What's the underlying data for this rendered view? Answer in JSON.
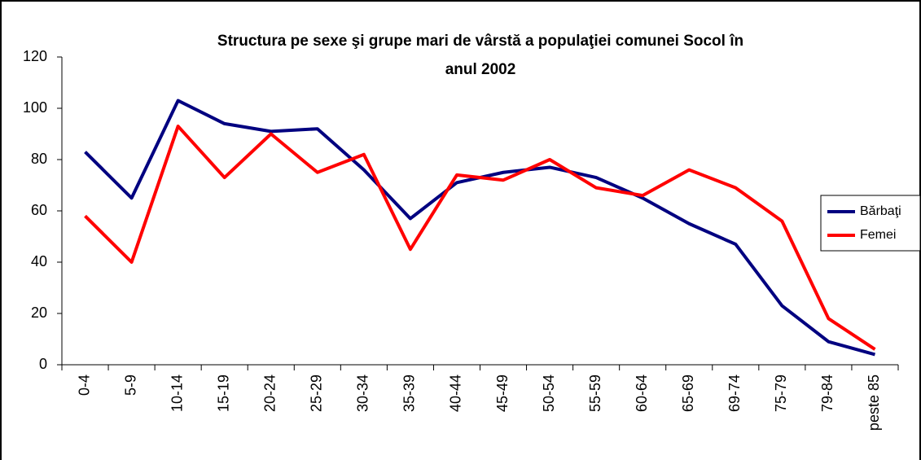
{
  "chart_data": {
    "type": "line",
    "title": [
      "Structura pe sexe şi grupe mari de vârstă a populaţiei comunei Socol în",
      "anul 2002"
    ],
    "categories": [
      "0-4",
      "5-9",
      "10-14",
      "15-19",
      "20-24",
      "25-29",
      "30-34",
      "35-39",
      "40-44",
      "45-49",
      "50-54",
      "55-59",
      "60-64",
      "65-69",
      "69-74",
      "75-79",
      "79-84",
      "peste 85"
    ],
    "series": [
      {
        "name": "Bărbaţi",
        "color": "#000080",
        "values": [
          83,
          65,
          103,
          94,
          91,
          92,
          76,
          57,
          71,
          75,
          77,
          73,
          65,
          55,
          47,
          23,
          9,
          4
        ]
      },
      {
        "name": "Femei",
        "color": "#ff0000",
        "values": [
          58,
          40,
          93,
          73,
          90,
          75,
          82,
          45,
          74,
          72,
          80,
          69,
          66,
          76,
          69,
          56,
          18,
          6
        ]
      }
    ],
    "ylim": [
      0,
      120
    ],
    "yticks": [
      0,
      20,
      40,
      60,
      80,
      100,
      120
    ],
    "grid": false,
    "legend": "right"
  }
}
